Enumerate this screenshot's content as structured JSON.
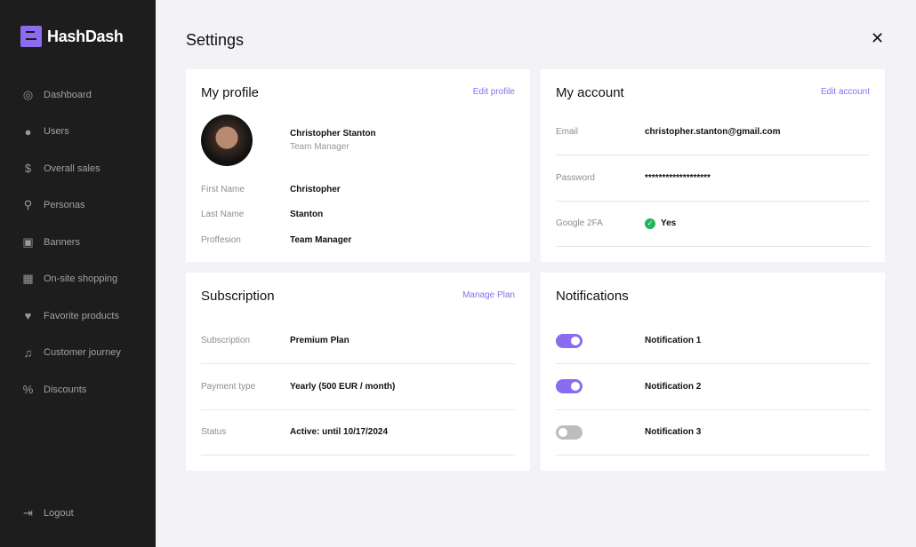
{
  "app": {
    "name": "HashDash",
    "accent": "#8b6cf0"
  },
  "sidebar": {
    "items": [
      {
        "label": "Dashboard",
        "icon": "gauge-icon",
        "glyph": "◎"
      },
      {
        "label": "Users",
        "icon": "user-icon",
        "glyph": "●"
      },
      {
        "label": "Overall sales",
        "icon": "sales-icon",
        "glyph": "$"
      },
      {
        "label": "Personas",
        "icon": "persona-search-icon",
        "glyph": "⚲"
      },
      {
        "label": "Banners",
        "icon": "image-icon",
        "glyph": "▣"
      },
      {
        "label": "On-site shopping",
        "icon": "store-icon",
        "glyph": "▦"
      },
      {
        "label": "Favorite products",
        "icon": "heart-icon",
        "glyph": "♥"
      },
      {
        "label": "Customer journey",
        "icon": "bell-icon",
        "glyph": "♫"
      },
      {
        "label": "Discounts",
        "icon": "percent-icon",
        "glyph": "%"
      }
    ],
    "logout": "Logout"
  },
  "page": {
    "title": "Settings",
    "close": "✕"
  },
  "profile": {
    "title": "My profile",
    "edit": "Edit profile",
    "name": "Christopher Stanton",
    "role": "Team Manager",
    "fields": [
      {
        "label": "First Name",
        "value": "Christopher"
      },
      {
        "label": "Last Name",
        "value": "Stanton"
      },
      {
        "label": "Proffesion",
        "value": "Team Manager"
      }
    ]
  },
  "account": {
    "title": "My account",
    "edit": "Edit account",
    "fields": [
      {
        "label": "Email",
        "value": "christopher.stanton@gmail.com"
      },
      {
        "label": "Password",
        "value": "*******************"
      },
      {
        "label": "Google 2FA",
        "value": "Yes"
      }
    ]
  },
  "subscription": {
    "title": "Subscription",
    "manage": "Manage Plan",
    "fields": [
      {
        "label": "Subscription",
        "value": "Premium Plan"
      },
      {
        "label": "Payment type",
        "value": "Yearly (500 EUR / month)"
      },
      {
        "label": "Status",
        "value": "Active: until 10/17/2024"
      }
    ]
  },
  "notifications": {
    "title": "Notifications",
    "items": [
      {
        "label": "Notification 1",
        "on": true
      },
      {
        "label": "Notification 2",
        "on": true
      },
      {
        "label": "Notification 3",
        "on": false
      }
    ]
  }
}
